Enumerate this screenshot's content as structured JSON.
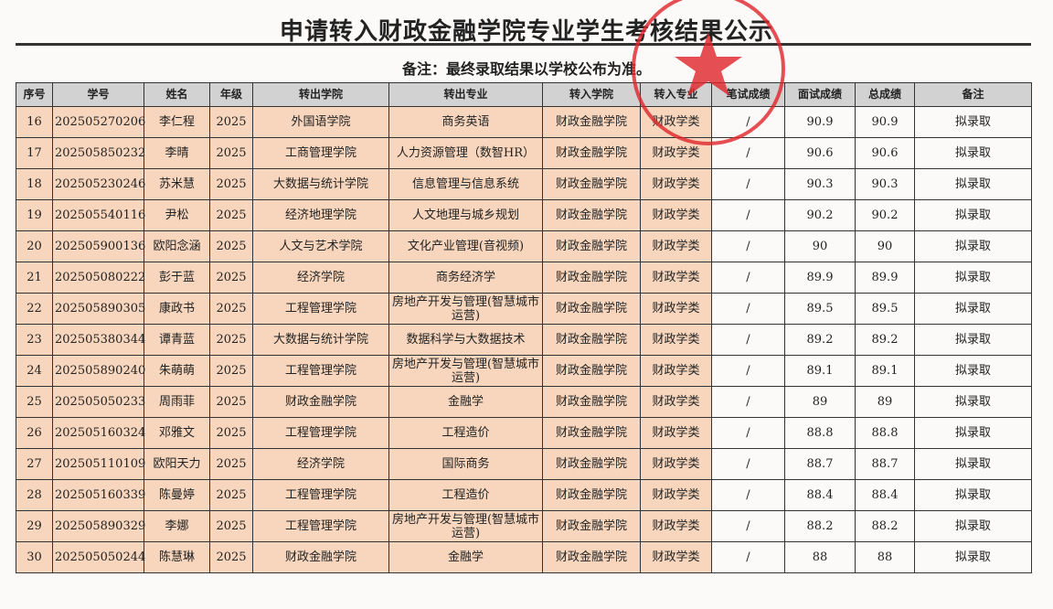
{
  "title": "申请转入财政金融学院专业学生考核结果公示",
  "note": "备注：最终录取结果以学校公布为准。",
  "stamp_color": "#e0252a",
  "peach_color": "#f7d6bd",
  "columns": [
    "序号",
    "学号",
    "姓名",
    "年级",
    "转出学院",
    "转出专业",
    "转入学院",
    "转入专业",
    "笔试成绩",
    "面试成绩",
    "总成绩",
    "备注"
  ],
  "rows": [
    [
      "16",
      "202505270206",
      "李仁程",
      "2025",
      "外国语学院",
      "商务英语",
      "财政金融学院",
      "财政学类",
      "/",
      "90.9",
      "90.9",
      "拟录取"
    ],
    [
      "17",
      "202505850232",
      "李晴",
      "2025",
      "工商管理学院",
      "人力资源管理（数智HR）",
      "财政金融学院",
      "财政学类",
      "/",
      "90.6",
      "90.6",
      "拟录取"
    ],
    [
      "18",
      "202505230246",
      "苏米慧",
      "2025",
      "大数据与统计学院",
      "信息管理与信息系统",
      "财政金融学院",
      "财政学类",
      "/",
      "90.3",
      "90.3",
      "拟录取"
    ],
    [
      "19",
      "202505540116",
      "尹松",
      "2025",
      "经济地理学院",
      "人文地理与城乡规划",
      "财政金融学院",
      "财政学类",
      "/",
      "90.2",
      "90.2",
      "拟录取"
    ],
    [
      "20",
      "202505900136",
      "欧阳念涵",
      "2025",
      "人文与艺术学院",
      "文化产业管理(音视频)",
      "财政金融学院",
      "财政学类",
      "/",
      "90",
      "90",
      "拟录取"
    ],
    [
      "21",
      "202505080222",
      "彭于蓝",
      "2025",
      "经济学院",
      "商务经济学",
      "财政金融学院",
      "财政学类",
      "/",
      "89.9",
      "89.9",
      "拟录取"
    ],
    [
      "22",
      "202505890305",
      "康政书",
      "2025",
      "工程管理学院",
      "房地产开发与管理(智慧城市运营)",
      "财政金融学院",
      "财政学类",
      "/",
      "89.5",
      "89.5",
      "拟录取"
    ],
    [
      "23",
      "202505380344",
      "谭青蓝",
      "2025",
      "大数据与统计学院",
      "数据科学与大数据技术",
      "财政金融学院",
      "财政学类",
      "/",
      "89.2",
      "89.2",
      "拟录取"
    ],
    [
      "24",
      "202505890240",
      "朱萌萌",
      "2025",
      "工程管理学院",
      "房地产开发与管理(智慧城市运营)",
      "财政金融学院",
      "财政学类",
      "/",
      "89.1",
      "89.1",
      "拟录取"
    ],
    [
      "25",
      "202505050233",
      "周雨菲",
      "2025",
      "财政金融学院",
      "金融学",
      "财政金融学院",
      "财政学类",
      "/",
      "89",
      "89",
      "拟录取"
    ],
    [
      "26",
      "202505160324",
      "邓雅文",
      "2025",
      "工程管理学院",
      "工程造价",
      "财政金融学院",
      "财政学类",
      "/",
      "88.8",
      "88.8",
      "拟录取"
    ],
    [
      "27",
      "202505110109",
      "欧阳天力",
      "2025",
      "经济学院",
      "国际商务",
      "财政金融学院",
      "财政学类",
      "/",
      "88.7",
      "88.7",
      "拟录取"
    ],
    [
      "28",
      "202505160339",
      "陈曼婷",
      "2025",
      "工程管理学院",
      "工程造价",
      "财政金融学院",
      "财政学类",
      "/",
      "88.4",
      "88.4",
      "拟录取"
    ],
    [
      "29",
      "202505890329",
      "李娜",
      "2025",
      "工程管理学院",
      "房地产开发与管理(智慧城市运营)",
      "财政金融学院",
      "财政学类",
      "/",
      "88.2",
      "88.2",
      "拟录取"
    ],
    [
      "30",
      "202505050244",
      "陈慧琳",
      "2025",
      "财政金融学院",
      "金融学",
      "财政金融学院",
      "财政学类",
      "/",
      "88",
      "88",
      "拟录取"
    ]
  ]
}
